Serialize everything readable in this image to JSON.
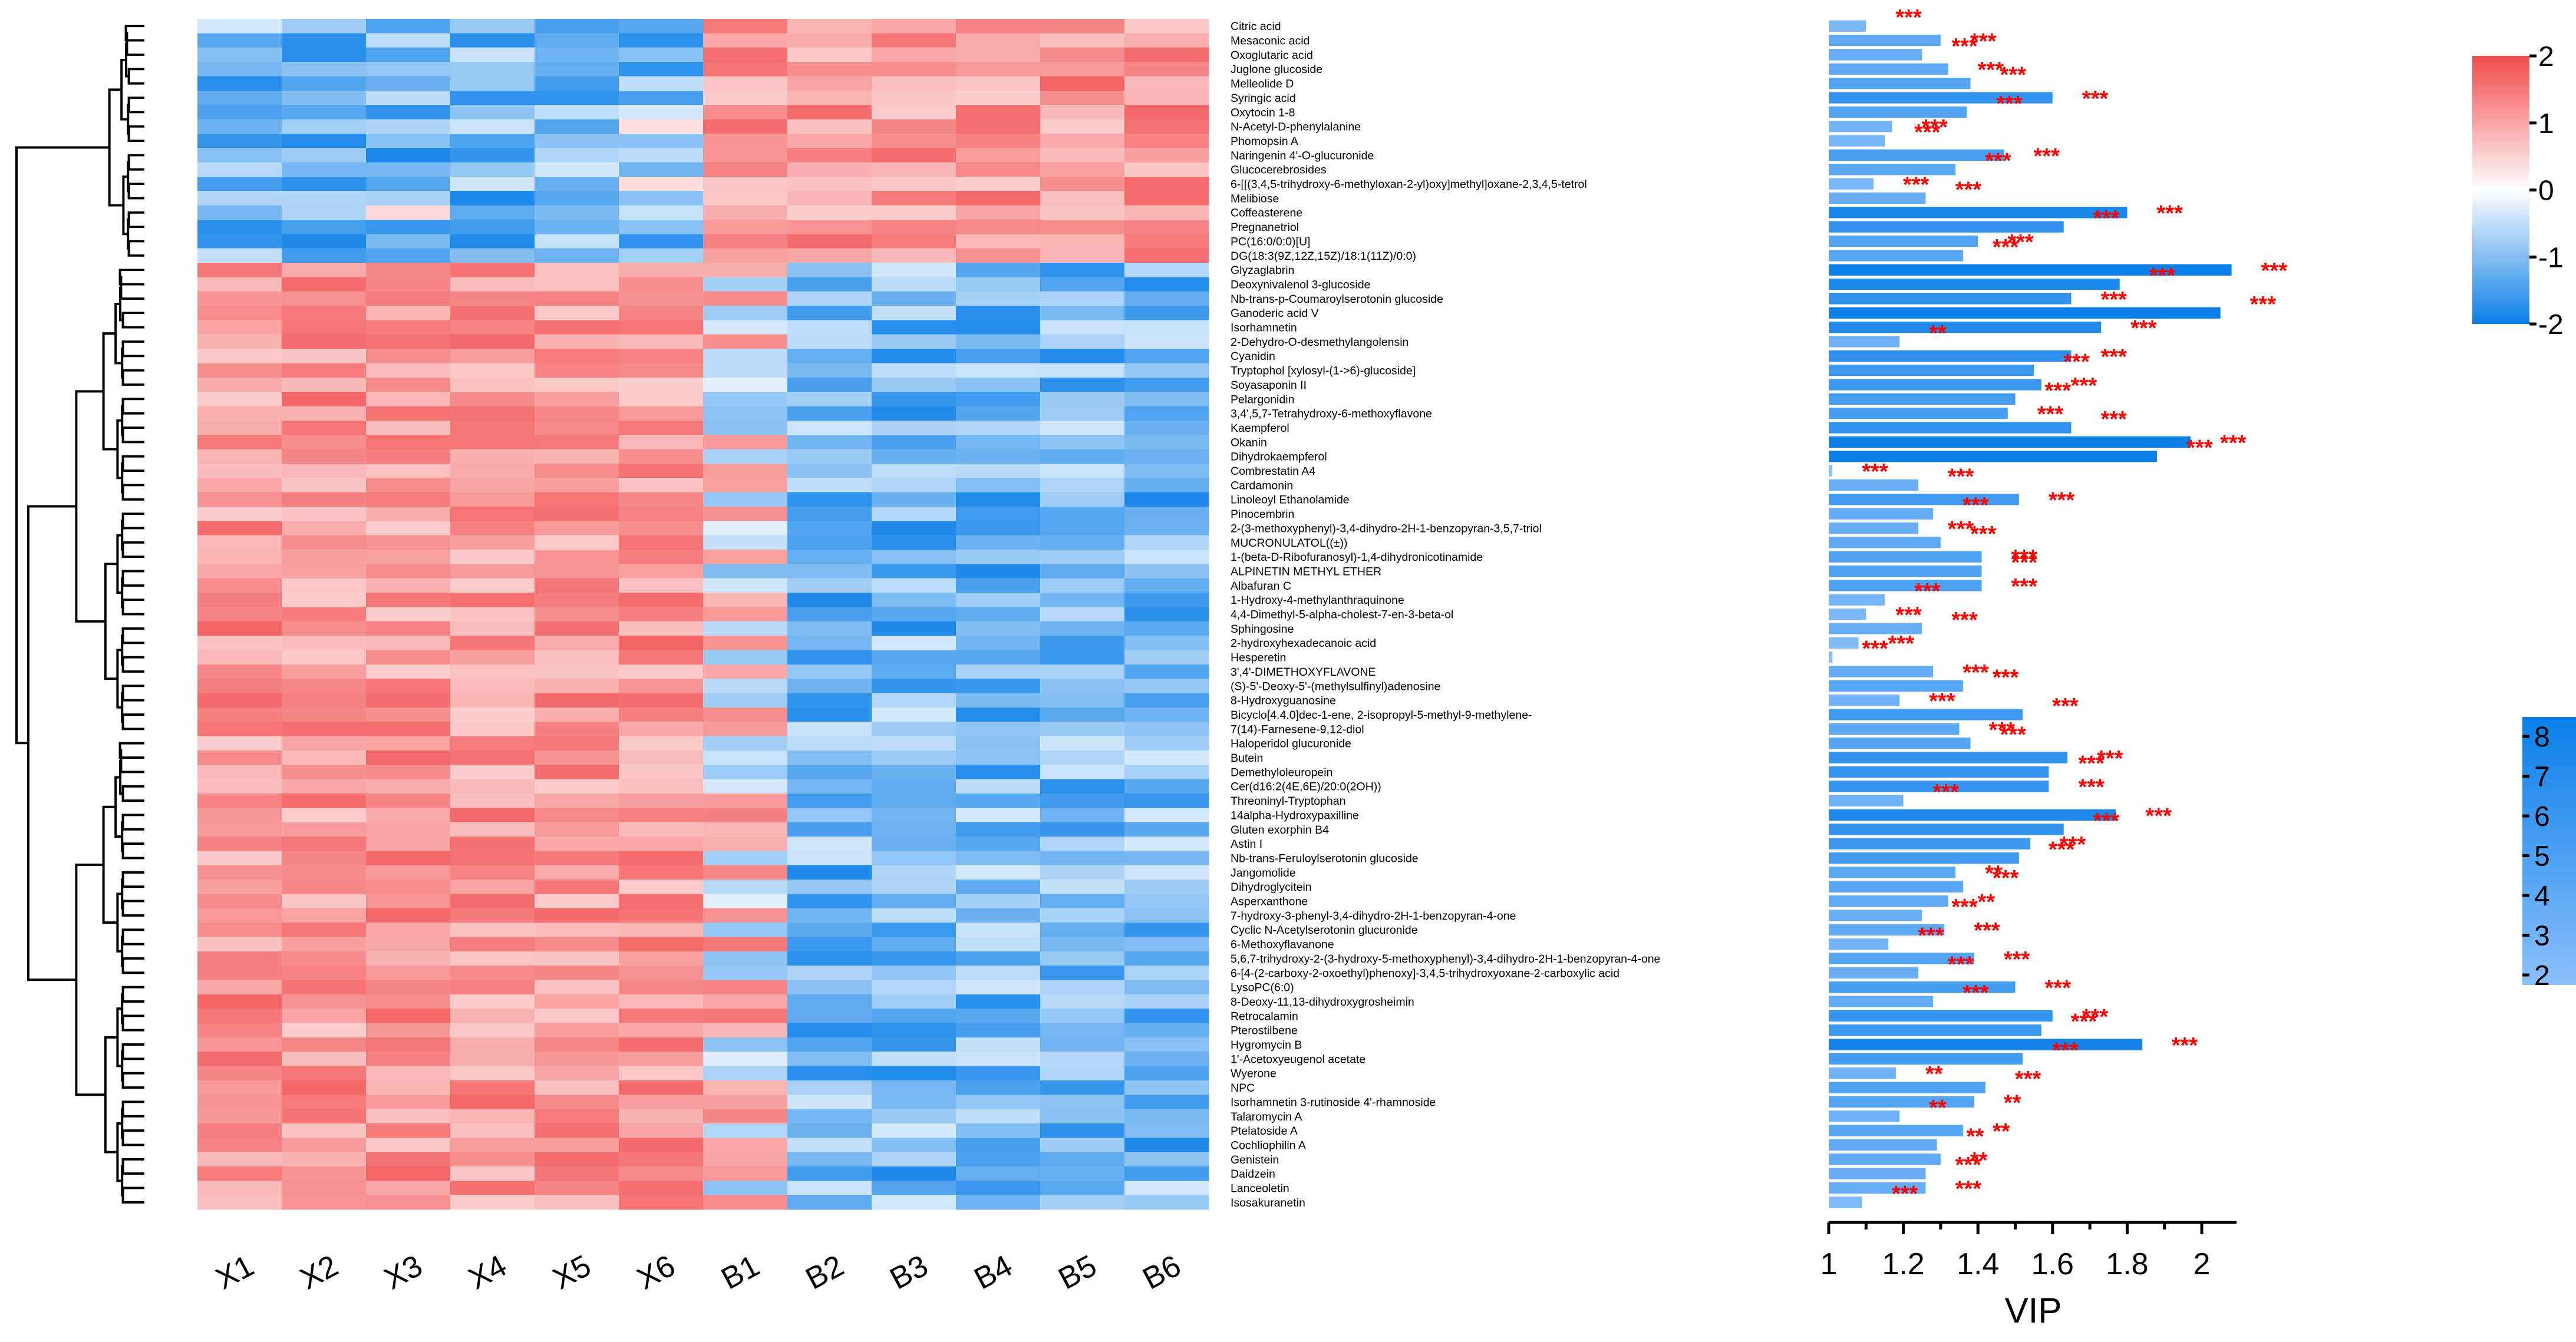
{
  "chart_data": {
    "type": "heatmap",
    "samples": [
      "X1",
      "X2",
      "X3",
      "X4",
      "X5",
      "X6",
      "B1",
      "B2",
      "B3",
      "B4",
      "B5",
      "B6"
    ],
    "metabolites": [
      "Citric acid",
      "Mesaconic acid",
      "Oxoglutaric acid",
      "Juglone glucoside",
      "Melleolide D",
      "Syringic acid",
      "Oxytocin 1-8",
      "N-Acetyl-D-phenylalanine",
      "Phomopsin A",
      "Naringenin 4'-O-glucuronide",
      "Glucocerebrosides",
      "6-[[(3,4,5-trihydroxy-6-methyloxan-2-yl)oxy]methyl]oxane-2,3,4,5-tetrol",
      "Melibiose",
      "Coffeasterene",
      "Pregnanetriol",
      "PC(16:0/0:0)[U]",
      "DG(18:3(9Z,12Z,15Z)/18:1(11Z)/0:0)",
      "Glyzaglabrin",
      "Deoxynivalenol 3-glucoside",
      "Nb-trans-p-Coumaroylserotonin glucoside",
      "Ganoderic acid V",
      "Isorhamnetin",
      "2-Dehydro-O-desmethylangolensin",
      "Cyanidin",
      "Tryptophol [xylosyl-(1->6)-glucoside]",
      "Soyasaponin II",
      "Pelargonidin",
      "3,4',5,7-Tetrahydroxy-6-methoxyflavone",
      "Kaempferol",
      "Okanin",
      "Dihydrokaempferol",
      "Combrestatin A4",
      "Cardamonin",
      "Linoleoyl Ethanolamide",
      "Pinocembrin",
      "2-(3-methoxyphenyl)-3,4-dihydro-2H-1-benzopyran-3,5,7-triol",
      "MUCRONULATOL((±))",
      "1-(beta-D-Ribofuranosyl)-1,4-dihydronicotinamide",
      "ALPINETIN METHYL ETHER",
      "Albafuran C",
      "1-Hydroxy-4-methylanthraquinone",
      "4,4-Dimethyl-5-alpha-cholest-7-en-3-beta-ol",
      "Sphingosine",
      "2-hydroxyhexadecanoic acid",
      "Hesperetin",
      "3',4'-DIMETHOXYFLAVONE",
      "(S)-5'-Deoxy-5'-(methylsulfinyl)adenosine",
      "8-Hydroxyguanosine",
      "Bicyclo[4.4.0]dec-1-ene, 2-isopropyl-5-methyl-9-methylene-",
      "7(14)-Farnesene-9,12-diol",
      "Haloperidol glucuronide",
      "Butein",
      "Demethyloleuropein",
      "Cer(d16:2(4E,6E)/20:0(2OH))",
      "Threoninyl-Tryptophan",
      "14alpha-Hydroxypaxilline",
      "Gluten exorphin B4",
      "Astin I",
      "Nb-trans-Feruloylserotonin glucoside",
      "Jangomolide",
      "Dihydroglycitein",
      "Asperxanthone",
      "7-hydroxy-3-phenyl-3,4-dihydro-2H-1-benzopyran-4-one",
      "Cyclic N-Acetylserotonin glucuronide",
      "6-Methoxyflavanone",
      "5,6,7-trihydroxy-2-(3-hydroxy-5-methoxyphenyl)-3,4-dihydro-2H-1-benzopyran-4-one",
      "6-[4-(2-carboxy-2-oxoethyl)phenoxy]-3,4,5-trihydroxyoxane-2-carboxylic acid",
      "LysoPC(6:0)",
      "8-Deoxy-11,13-dihydroxygrosheimin",
      "Retrocalamin",
      "Pterostilbene",
      "Hygromycin B",
      "1'-Acetoxyeugenol acetate",
      "Wyerone",
      "NPC",
      "Isorhamnetin 3-rutinoside 4'-rhamnoside",
      "Talaromycin A",
      "Ptelatoside A",
      "Cochliophilin A",
      "Genistein",
      "Daidzein",
      "Lanceoletin",
      "Isosakuranetin"
    ],
    "up_in_B_count": 17,
    "vip": [
      1.1,
      1.3,
      1.25,
      1.32,
      1.38,
      1.6,
      1.37,
      1.17,
      1.15,
      1.47,
      1.34,
      1.12,
      1.26,
      1.8,
      1.63,
      1.4,
      1.36,
      2.08,
      1.78,
      1.65,
      2.05,
      1.73,
      1.19,
      1.65,
      1.55,
      1.57,
      1.5,
      1.48,
      1.65,
      1.97,
      1.88,
      1.01,
      1.24,
      1.51,
      1.28,
      1.24,
      1.3,
      1.41,
      1.41,
      1.41,
      1.15,
      1.1,
      1.25,
      1.08,
      1.01,
      1.28,
      1.36,
      1.19,
      1.52,
      1.35,
      1.38,
      1.64,
      1.59,
      1.59,
      1.2,
      1.77,
      1.63,
      1.54,
      1.51,
      1.34,
      1.36,
      1.32,
      1.25,
      1.31,
      1.16,
      1.39,
      1.24,
      1.5,
      1.28,
      1.6,
      1.57,
      1.84,
      1.52,
      1.18,
      1.42,
      1.39,
      1.19,
      1.36,
      1.29,
      1.3,
      1.26,
      1.26,
      1.09
    ],
    "significance": [
      "***",
      "***",
      "***",
      "***",
      "***",
      "***",
      "***",
      "***",
      "***",
      "***",
      "***",
      "***",
      "***",
      "***",
      "***",
      "***",
      "***",
      "***",
      "***",
      "***",
      "***",
      "***",
      "**",
      "***",
      "***",
      "***",
      "***",
      "***",
      "***",
      "***",
      "***",
      "***",
      "***",
      "***",
      "***",
      "***",
      "***",
      "***",
      "***",
      "***",
      "***",
      "***",
      "***",
      "***",
      "***",
      "***",
      "***",
      "***",
      "***",
      "***",
      "***",
      "***",
      "***",
      "***",
      "***",
      "***",
      "***",
      "***",
      "***",
      "**",
      "***",
      "**",
      "***",
      "***",
      "***",
      "***",
      "***",
      "***",
      "***",
      "***",
      "***",
      "***",
      "***",
      "**",
      "***",
      "**",
      "**",
      "**",
      "**",
      "**",
      "***",
      "***",
      "***"
    ],
    "xlabel": "",
    "vip_axis": {
      "label": "VIP",
      "ticks": [
        "1",
        "1.2",
        "1.4",
        "1.6",
        "1.8",
        "2"
      ],
      "range": [
        1,
        2.1
      ]
    },
    "colorbar_zscore": {
      "ticks": [
        "2",
        "1",
        "0",
        "-1",
        "-2"
      ],
      "range": [
        -2,
        2
      ],
      "colors": [
        "#0a7fe8",
        "#ffffff",
        "#f24b4b"
      ]
    },
    "colorbar_vip": {
      "ticks": [
        "8",
        "7",
        "6",
        "5",
        "4",
        "3",
        "2"
      ],
      "range": [
        2,
        8
      ],
      "colors": [
        "#8bc0fb",
        "#0a7fe8"
      ]
    }
  }
}
